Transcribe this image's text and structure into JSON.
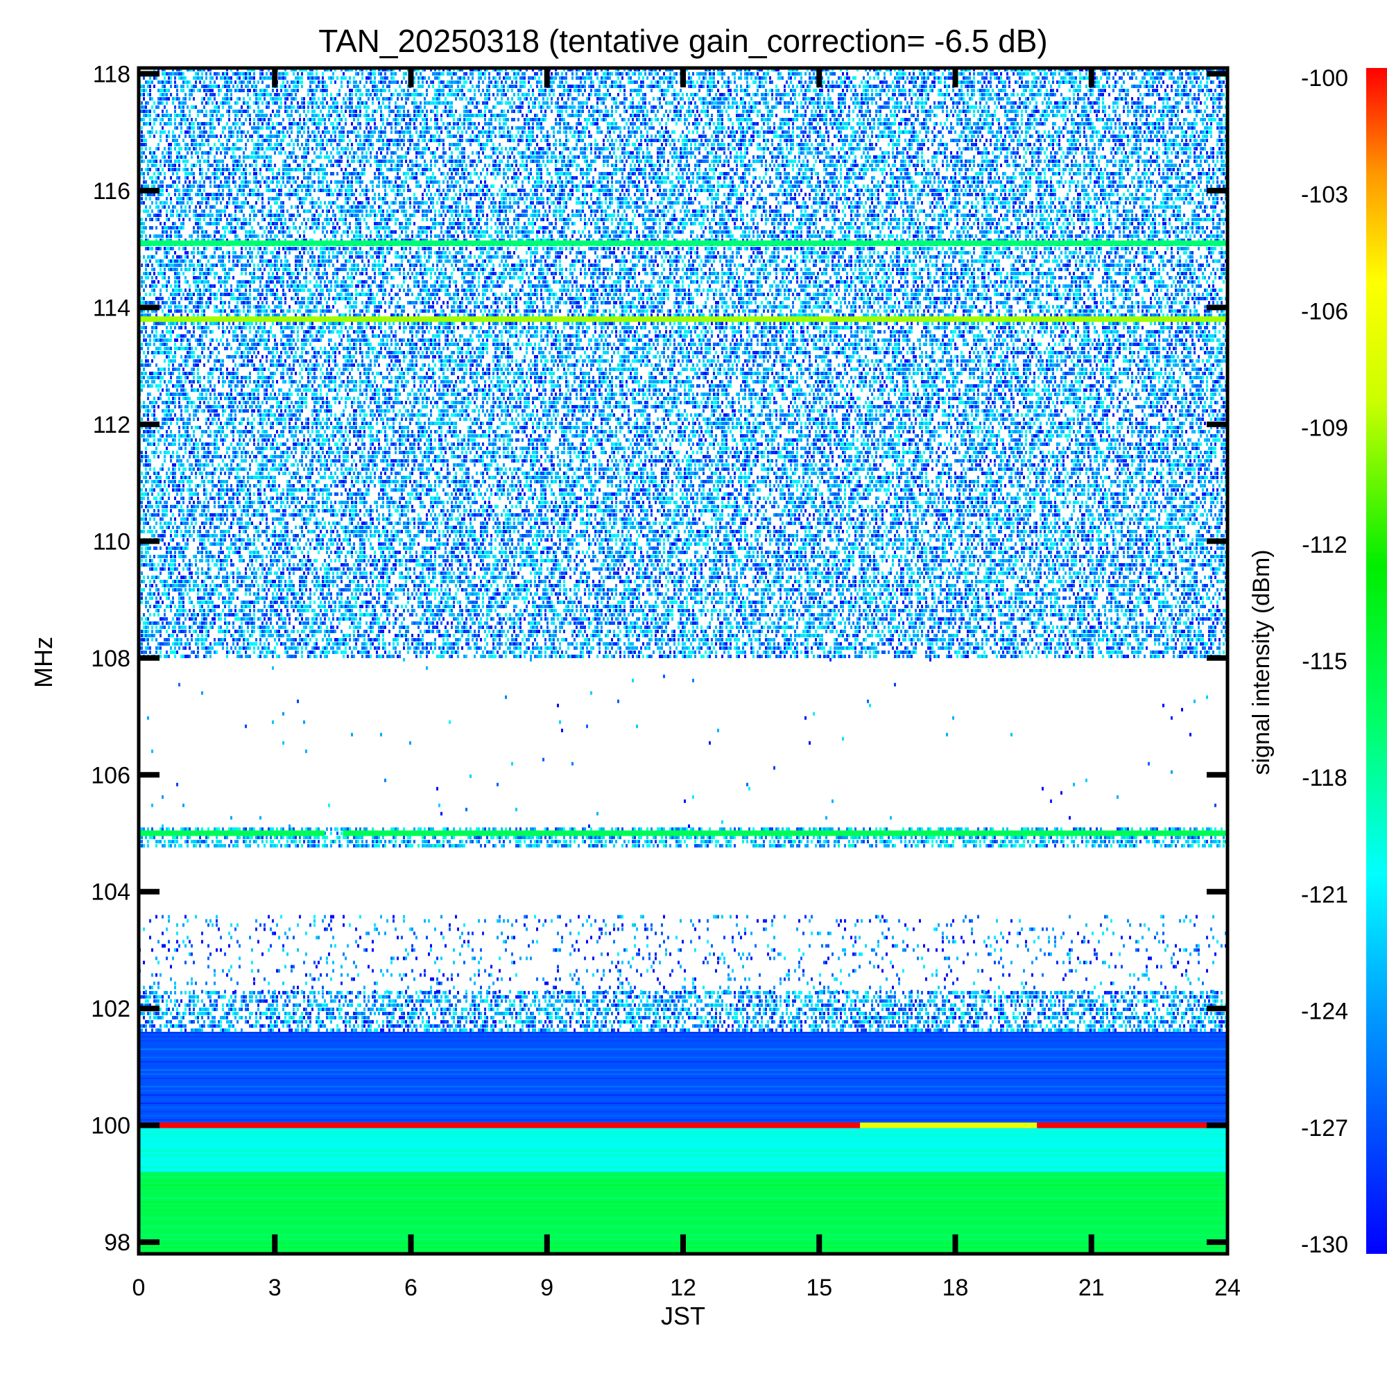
{
  "chart_data": {
    "type": "heatmap",
    "title": "TAN_20250318 (tentative gain_correction= -6.5 dB)",
    "xlabel": "JST",
    "ylabel": "MHz",
    "colorbar_label": "signal intensity (dBm)",
    "xlim": [
      0,
      24
    ],
    "ylim": [
      97.8,
      118.1
    ],
    "xticks": [
      0,
      3,
      6,
      9,
      12,
      15,
      18,
      21,
      24
    ],
    "yticks": [
      98,
      100,
      102,
      104,
      106,
      108,
      110,
      112,
      114,
      116,
      118
    ],
    "colorbar_ticks": [
      -100,
      -103,
      -106,
      -109,
      -112,
      -115,
      -118,
      -121,
      -124,
      -127,
      -130
    ],
    "color_range": [
      -130,
      -100
    ],
    "colormap": [
      "#0000ff",
      "#0099ff",
      "#00ffff",
      "#00ff66",
      "#00ee00",
      "#ccff00",
      "#ffff00",
      "#ff9900",
      "#ff0000"
    ],
    "bands": [
      {
        "freq_range": [
          97.8,
          99.2
        ],
        "dbm": -118,
        "pattern": "solid"
      },
      {
        "freq_range": [
          99.2,
          100.0
        ],
        "dbm": -122,
        "pattern": "solid"
      },
      {
        "freq_range": [
          100.0,
          101.6
        ],
        "dbm": -128,
        "pattern": "solid"
      },
      {
        "freq_range": [
          101.6,
          102.3
        ],
        "dbm": -127,
        "pattern": "dense"
      },
      {
        "freq_range": [
          102.3,
          103.6
        ],
        "dbm": -128,
        "pattern": "sparse"
      },
      {
        "freq_range": [
          104.8,
          105.1
        ],
        "dbm": -126,
        "pattern": "dense"
      },
      {
        "freq_range": [
          105.1,
          108.0
        ],
        "dbm": -128,
        "pattern": "rare"
      },
      {
        "freq_range": [
          108.0,
          118.1
        ],
        "dbm": -127,
        "pattern": "dense"
      }
    ],
    "lines": [
      {
        "freq": 100.0,
        "segments": [
          {
            "x": [
              0,
              15.9
            ],
            "dbm": -100
          },
          {
            "x": [
              15.9,
              19.8
            ],
            "dbm": -109
          },
          {
            "x": [
              19.8,
              24
            ],
            "dbm": -100
          }
        ]
      },
      {
        "freq": 105.0,
        "segments": [
          {
            "x": [
              0,
              4.1
            ],
            "dbm": -118
          },
          {
            "x": [
              4.5,
              24
            ],
            "dbm": -118
          }
        ]
      },
      {
        "freq": 113.8,
        "segments": [
          {
            "x": [
              0,
              24
            ],
            "dbm": -112
          }
        ]
      },
      {
        "freq": 115.1,
        "segments": [
          {
            "x": [
              0,
              24
            ],
            "dbm": -119
          }
        ]
      }
    ]
  }
}
